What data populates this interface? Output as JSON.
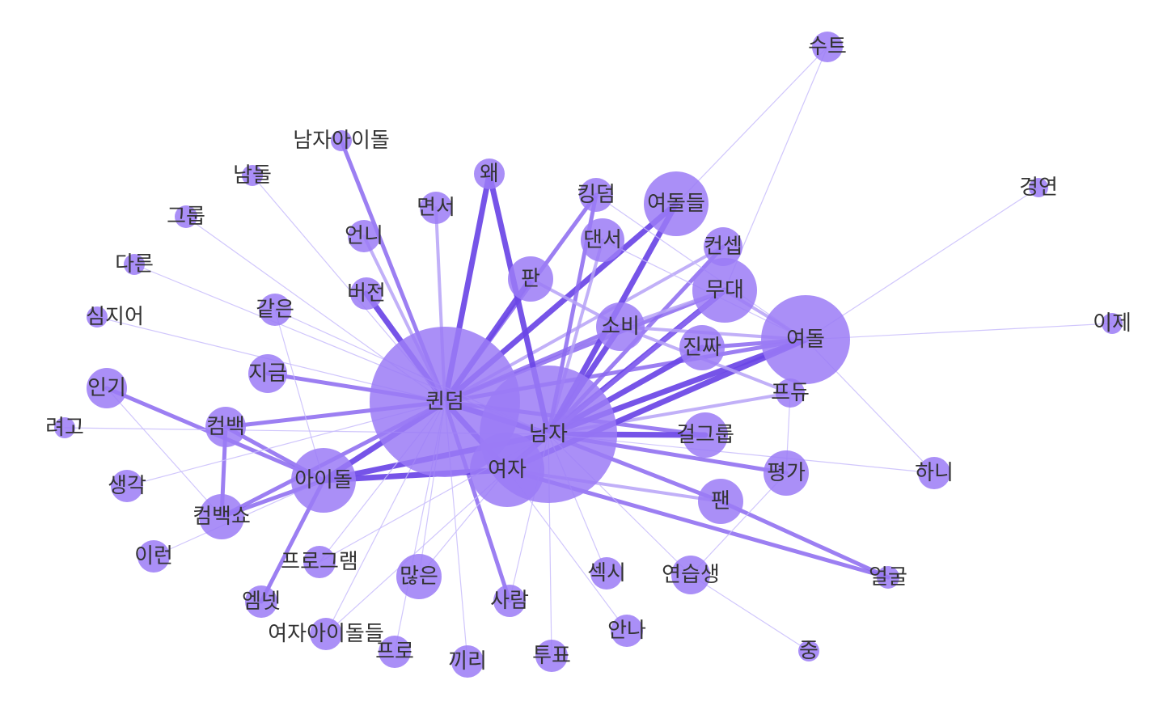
{
  "colors": {
    "node": "#9b7bf6",
    "edge_strong": "#6a45e6",
    "edge_medium": "#8b68f0",
    "edge_light": "#b6a2f7",
    "edge_faint": "#c8bcfb",
    "label": "#333333"
  },
  "nodes": [
    {
      "id": "suit",
      "label": "수트"
    },
    {
      "id": "male-idol",
      "label": "남자아이돌"
    },
    {
      "id": "namdol",
      "label": "남돌"
    },
    {
      "id": "why",
      "label": "왜"
    },
    {
      "id": "kingdom",
      "label": "킹덤"
    },
    {
      "id": "yeodoldeul",
      "label": "여돌들"
    },
    {
      "id": "contest",
      "label": "경연"
    },
    {
      "id": "group",
      "label": "그룹"
    },
    {
      "id": "interview",
      "label": "면서"
    },
    {
      "id": "dancer",
      "label": "댄서"
    },
    {
      "id": "concept",
      "label": "컨셉"
    },
    {
      "id": "other",
      "label": "다른"
    },
    {
      "id": "unni",
      "label": "언니"
    },
    {
      "id": "fan-pan",
      "label": "판"
    },
    {
      "id": "stage",
      "label": "무대"
    },
    {
      "id": "version",
      "label": "버전"
    },
    {
      "id": "even",
      "label": "심지어"
    },
    {
      "id": "same",
      "label": "같은"
    },
    {
      "id": "consume",
      "label": "소비"
    },
    {
      "id": "yeodol",
      "label": "여돌"
    },
    {
      "id": "now-ije",
      "label": "이제"
    },
    {
      "id": "real",
      "label": "진짜"
    },
    {
      "id": "now",
      "label": "지금"
    },
    {
      "id": "popular",
      "label": "인기"
    },
    {
      "id": "queendom",
      "label": "퀸덤"
    },
    {
      "id": "produce",
      "label": "프듀"
    },
    {
      "id": "comeback",
      "label": "컴백"
    },
    {
      "id": "ryeogo",
      "label": "려고"
    },
    {
      "id": "man",
      "label": "남자"
    },
    {
      "id": "girlgroup",
      "label": "걸그룹"
    },
    {
      "id": "idol",
      "label": "아이돌"
    },
    {
      "id": "woman",
      "label": "여자"
    },
    {
      "id": "thought",
      "label": "생각"
    },
    {
      "id": "evaluation",
      "label": "평가"
    },
    {
      "id": "hani",
      "label": "하니"
    },
    {
      "id": "comebackshow",
      "label": "컴백쇼"
    },
    {
      "id": "fan",
      "label": "팬"
    },
    {
      "id": "this",
      "label": "이런"
    },
    {
      "id": "program",
      "label": "프로그램"
    },
    {
      "id": "many",
      "label": "많은"
    },
    {
      "id": "sexy",
      "label": "섹시"
    },
    {
      "id": "trainee",
      "label": "연습생"
    },
    {
      "id": "face",
      "label": "얼굴"
    },
    {
      "id": "mnet",
      "label": "엠넷"
    },
    {
      "id": "person",
      "label": "사람"
    },
    {
      "id": "anna",
      "label": "안나"
    },
    {
      "id": "female-idols",
      "label": "여자아이돌들"
    },
    {
      "id": "pro",
      "label": "프로"
    },
    {
      "id": "kkiri",
      "label": "끼리"
    },
    {
      "id": "vote",
      "label": "투표"
    },
    {
      "id": "middle",
      "label": "중"
    }
  ],
  "edges": [
    [
      "queendom",
      "male-idol",
      "medium"
    ],
    [
      "queendom",
      "why",
      "strong"
    ],
    [
      "queendom",
      "interview",
      "light"
    ],
    [
      "queendom",
      "kingdom",
      "medium"
    ],
    [
      "queendom",
      "fan-pan",
      "strong"
    ],
    [
      "queendom",
      "yeodoldeul",
      "strong"
    ],
    [
      "queendom",
      "version",
      "strong"
    ],
    [
      "queendom",
      "unni",
      "light"
    ],
    [
      "queendom",
      "now",
      "medium"
    ],
    [
      "queendom",
      "comeback",
      "medium"
    ],
    [
      "queendom",
      "idol",
      "strong"
    ],
    [
      "queendom",
      "woman",
      "strong"
    ],
    [
      "queendom",
      "man",
      "strong"
    ],
    [
      "queendom",
      "stage",
      "medium"
    ],
    [
      "queendom",
      "concept",
      "light"
    ],
    [
      "queendom",
      "consume",
      "medium"
    ],
    [
      "queendom",
      "yeodol",
      "medium"
    ],
    [
      "queendom",
      "girlgroup",
      "medium"
    ],
    [
      "queendom",
      "person",
      "medium"
    ],
    [
      "queendom",
      "comebackshow",
      "medium"
    ],
    [
      "man",
      "why",
      "strong"
    ],
    [
      "man",
      "dancer",
      "light"
    ],
    [
      "man",
      "kingdom",
      "medium"
    ],
    [
      "man",
      "yeodoldeul",
      "strong"
    ],
    [
      "man",
      "stage",
      "strong"
    ],
    [
      "man",
      "yeodol",
      "strong"
    ],
    [
      "man",
      "real",
      "strong"
    ],
    [
      "man",
      "consume",
      "strong"
    ],
    [
      "man",
      "girlgroup",
      "strong"
    ],
    [
      "man",
      "evaluation",
      "medium"
    ],
    [
      "man",
      "fan",
      "medium"
    ],
    [
      "man",
      "idol",
      "strong"
    ],
    [
      "man",
      "woman",
      "strong"
    ],
    [
      "man",
      "produce",
      "light"
    ],
    [
      "man",
      "concept",
      "medium"
    ],
    [
      "woman",
      "idol",
      "strong"
    ],
    [
      "woman",
      "yeodol",
      "strong"
    ],
    [
      "woman",
      "stage",
      "medium"
    ],
    [
      "woman",
      "fan",
      "light"
    ],
    [
      "woman",
      "face",
      "medium"
    ],
    [
      "idol",
      "comeback",
      "medium"
    ],
    [
      "idol",
      "popular",
      "medium"
    ],
    [
      "idol",
      "comebackshow",
      "medium"
    ],
    [
      "idol",
      "mnet",
      "medium"
    ],
    [
      "fan-pan",
      "consume",
      "light"
    ],
    [
      "consume",
      "produce",
      "light"
    ],
    [
      "consume",
      "yeodol",
      "light"
    ],
    [
      "real",
      "yeodol",
      "medium"
    ],
    [
      "stage",
      "yeodol",
      "light"
    ],
    [
      "comeback",
      "comebackshow",
      "medium"
    ],
    [
      "fan",
      "face",
      "medium"
    ],
    [
      "stage",
      "consume",
      "light"
    ],
    [
      "suit",
      "yeodoldeul",
      "faint"
    ],
    [
      "suit",
      "stage",
      "faint"
    ],
    [
      "contest",
      "yeodol",
      "faint"
    ],
    [
      "now-ije",
      "yeodol",
      "faint"
    ],
    [
      "hani",
      "yeodol",
      "faint"
    ],
    [
      "hani",
      "man",
      "faint"
    ],
    [
      "middle",
      "trainee",
      "faint"
    ],
    [
      "namdol",
      "queendom",
      "faint"
    ],
    [
      "group",
      "queendom",
      "faint"
    ],
    [
      "other",
      "man",
      "faint"
    ],
    [
      "even",
      "queendom",
      "faint"
    ],
    [
      "same",
      "man",
      "faint"
    ],
    [
      "ryeogo",
      "man",
      "faint"
    ],
    [
      "thought",
      "queendom",
      "faint"
    ],
    [
      "this",
      "idol",
      "faint"
    ],
    [
      "program",
      "queendom",
      "faint"
    ],
    [
      "many",
      "woman",
      "faint"
    ],
    [
      "sexy",
      "man",
      "faint"
    ],
    [
      "trainee",
      "man",
      "faint"
    ],
    [
      "anna",
      "woman",
      "faint"
    ],
    [
      "female-idols",
      "queendom",
      "faint"
    ],
    [
      "pro",
      "queendom",
      "faint"
    ],
    [
      "kkiri",
      "queendom",
      "faint"
    ],
    [
      "vote",
      "man",
      "faint"
    ],
    [
      "popular",
      "comebackshow",
      "faint"
    ],
    [
      "same",
      "idol",
      "faint"
    ],
    [
      "trainee",
      "evaluation",
      "faint"
    ],
    [
      "dancer",
      "yeodol",
      "faint"
    ],
    [
      "kingdom",
      "yeodol",
      "faint"
    ],
    [
      "produce",
      "evaluation",
      "faint"
    ],
    [
      "many",
      "queendom",
      "faint"
    ],
    [
      "person",
      "man",
      "faint"
    ],
    [
      "program",
      "man",
      "faint"
    ],
    [
      "female-idols",
      "woman",
      "faint"
    ]
  ]
}
